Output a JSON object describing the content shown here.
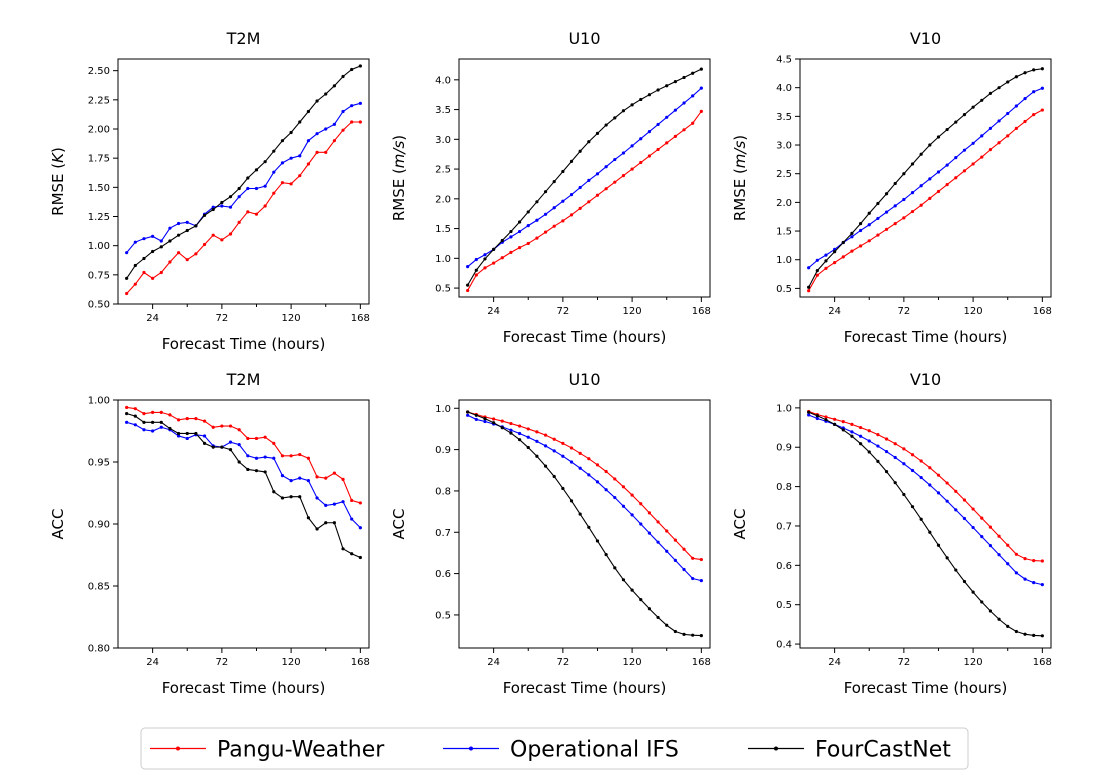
{
  "xlabel": "Forecast Time (hours)",
  "series_styles": {
    "Pangu-Weather": "#ff0000",
    "Operational IFS": "#0000ff",
    "FourCastNet": "#000000"
  },
  "legend": {
    "position": "bottom-center",
    "entries": [
      "Pangu-Weather",
      "Operational IFS",
      "FourCastNet"
    ]
  },
  "chart_data": [
    {
      "type": "line",
      "title": "T2M",
      "ylabel": "RMSE ",
      "ylabel_unit": "K",
      "xlim": [
        0,
        174
      ],
      "ylim": [
        0.5,
        2.6
      ],
      "xticks": [
        24,
        72,
        120,
        168
      ],
      "xminor": [
        48,
        96,
        144
      ],
      "yticks": [
        0.5,
        0.75,
        1.0,
        1.25,
        1.5,
        1.75,
        2.0,
        2.25,
        2.5
      ],
      "ytick_labels": [
        "0.50",
        "0.75",
        "1.00",
        "1.25",
        "1.50",
        "1.75",
        "2.00",
        "2.25",
        "2.50"
      ],
      "x": [
        6,
        12,
        18,
        24,
        30,
        36,
        42,
        48,
        54,
        60,
        66,
        72,
        78,
        84,
        90,
        96,
        102,
        108,
        114,
        120,
        126,
        132,
        138,
        144,
        150,
        156,
        162,
        168
      ],
      "series": [
        {
          "name": "Pangu-Weather",
          "values": [
            0.59,
            0.67,
            0.77,
            0.72,
            0.77,
            0.86,
            0.94,
            0.88,
            0.93,
            1.01,
            1.09,
            1.05,
            1.1,
            1.2,
            1.29,
            1.27,
            1.34,
            1.45,
            1.54,
            1.53,
            1.6,
            1.7,
            1.8,
            1.8,
            1.9,
            1.99,
            2.06,
            2.06
          ]
        },
        {
          "name": "Operational IFS",
          "values": [
            0.94,
            1.03,
            1.06,
            1.08,
            1.04,
            1.15,
            1.19,
            1.2,
            1.17,
            1.27,
            1.33,
            1.34,
            1.33,
            1.42,
            1.49,
            1.49,
            1.51,
            1.63,
            1.71,
            1.75,
            1.77,
            1.9,
            1.96,
            2.0,
            2.04,
            2.15,
            2.2,
            2.22
          ]
        },
        {
          "name": "FourCastNet",
          "values": [
            0.72,
            0.83,
            0.89,
            0.95,
            0.99,
            1.04,
            1.09,
            1.13,
            1.17,
            1.26,
            1.31,
            1.37,
            1.42,
            1.49,
            1.58,
            1.65,
            1.72,
            1.81,
            1.9,
            1.97,
            2.06,
            2.15,
            2.24,
            2.3,
            2.37,
            2.45,
            2.51,
            2.54
          ]
        }
      ]
    },
    {
      "type": "line",
      "title": "U10",
      "ylabel": "RMSE ",
      "ylabel_unit": "m/s",
      "xlim": [
        0,
        174
      ],
      "ylim": [
        0.35,
        4.35
      ],
      "xticks": [
        24,
        72,
        120,
        168
      ],
      "xminor": [
        48,
        96,
        144
      ],
      "yticks": [
        0.5,
        1.0,
        1.5,
        2.0,
        2.5,
        3.0,
        3.5,
        4.0
      ],
      "ytick_labels": [
        "0.5",
        "1.0",
        "1.5",
        "2.0",
        "2.5",
        "3.0",
        "3.5",
        "4.0"
      ],
      "x": [
        6,
        12,
        18,
        24,
        30,
        36,
        42,
        48,
        54,
        60,
        66,
        72,
        78,
        84,
        90,
        96,
        102,
        108,
        114,
        120,
        126,
        132,
        138,
        144,
        150,
        156,
        162,
        168
      ],
      "series": [
        {
          "name": "Pangu-Weather",
          "values": [
            0.46,
            0.72,
            0.84,
            0.92,
            1.01,
            1.1,
            1.18,
            1.25,
            1.34,
            1.44,
            1.54,
            1.63,
            1.73,
            1.84,
            1.95,
            2.06,
            2.17,
            2.28,
            2.39,
            2.5,
            2.61,
            2.72,
            2.83,
            2.94,
            3.05,
            3.16,
            3.27,
            3.47
          ]
        },
        {
          "name": "Operational IFS",
          "values": [
            0.86,
            0.98,
            1.06,
            1.15,
            1.27,
            1.36,
            1.45,
            1.55,
            1.64,
            1.74,
            1.85,
            1.96,
            2.07,
            2.19,
            2.31,
            2.42,
            2.54,
            2.66,
            2.77,
            2.89,
            3.01,
            3.13,
            3.25,
            3.37,
            3.49,
            3.61,
            3.73,
            3.86
          ]
        },
        {
          "name": "FourCastNet",
          "values": [
            0.55,
            0.8,
            0.99,
            1.15,
            1.3,
            1.45,
            1.61,
            1.78,
            1.95,
            2.12,
            2.29,
            2.46,
            2.63,
            2.8,
            2.96,
            3.1,
            3.24,
            3.36,
            3.48,
            3.58,
            3.67,
            3.75,
            3.83,
            3.9,
            3.97,
            4.04,
            4.11,
            4.18
          ]
        }
      ]
    },
    {
      "type": "line",
      "title": "V10",
      "ylabel": "RMSE ",
      "ylabel_unit": "m/s",
      "xlim": [
        0,
        174
      ],
      "ylim": [
        0.35,
        4.5
      ],
      "xticks": [
        24,
        72,
        120,
        168
      ],
      "xminor": [
        48,
        96,
        144
      ],
      "yticks": [
        0.5,
        1.0,
        1.5,
        2.0,
        2.5,
        3.0,
        3.5,
        4.0,
        4.5
      ],
      "ytick_labels": [
        "0.5",
        "1.0",
        "1.5",
        "2.0",
        "2.5",
        "3.0",
        "3.5",
        "4.0",
        "4.5"
      ],
      "x": [
        6,
        12,
        18,
        24,
        30,
        36,
        42,
        48,
        54,
        60,
        66,
        72,
        78,
        84,
        90,
        96,
        102,
        108,
        114,
        120,
        126,
        132,
        138,
        144,
        150,
        156,
        162,
        168
      ],
      "series": [
        {
          "name": "Pangu-Weather",
          "values": [
            0.46,
            0.73,
            0.85,
            0.95,
            1.05,
            1.15,
            1.24,
            1.33,
            1.43,
            1.53,
            1.63,
            1.73,
            1.84,
            1.95,
            2.07,
            2.19,
            2.31,
            2.43,
            2.55,
            2.67,
            2.79,
            2.92,
            3.04,
            3.16,
            3.29,
            3.41,
            3.53,
            3.61
          ]
        },
        {
          "name": "Operational IFS",
          "values": [
            0.86,
            0.99,
            1.08,
            1.18,
            1.3,
            1.4,
            1.51,
            1.61,
            1.72,
            1.83,
            1.94,
            2.05,
            2.17,
            2.29,
            2.41,
            2.53,
            2.65,
            2.78,
            2.91,
            3.03,
            3.16,
            3.29,
            3.42,
            3.55,
            3.68,
            3.81,
            3.93,
            3.99
          ]
        },
        {
          "name": "FourCastNet",
          "values": [
            0.52,
            0.81,
            0.98,
            1.14,
            1.3,
            1.46,
            1.63,
            1.81,
            1.98,
            2.15,
            2.33,
            2.5,
            2.67,
            2.84,
            3.0,
            3.14,
            3.27,
            3.4,
            3.53,
            3.66,
            3.78,
            3.9,
            4.0,
            4.1,
            4.19,
            4.26,
            4.31,
            4.33
          ]
        }
      ]
    },
    {
      "type": "line",
      "title": "T2M",
      "ylabel": "ACC",
      "ylabel_unit": "",
      "xlim": [
        0,
        174
      ],
      "ylim": [
        0.8,
        1.0
      ],
      "xticks": [
        24,
        72,
        120,
        168
      ],
      "xminor": [
        48,
        96,
        144
      ],
      "yticks": [
        0.8,
        0.85,
        0.9,
        0.95,
        1.0
      ],
      "ytick_labels": [
        "0.80",
        "0.85",
        "0.90",
        "0.95",
        "1.00"
      ],
      "x": [
        6,
        12,
        18,
        24,
        30,
        36,
        42,
        48,
        54,
        60,
        66,
        72,
        78,
        84,
        90,
        96,
        102,
        108,
        114,
        120,
        126,
        132,
        138,
        144,
        150,
        156,
        162,
        168
      ],
      "series": [
        {
          "name": "Pangu-Weather",
          "values": [
            0.994,
            0.993,
            0.989,
            0.99,
            0.99,
            0.988,
            0.984,
            0.985,
            0.985,
            0.983,
            0.978,
            0.979,
            0.979,
            0.976,
            0.969,
            0.969,
            0.97,
            0.965,
            0.955,
            0.955,
            0.956,
            0.953,
            0.938,
            0.937,
            0.941,
            0.936,
            0.919,
            0.917
          ]
        },
        {
          "name": "Operational IFS",
          "values": [
            0.982,
            0.98,
            0.976,
            0.975,
            0.978,
            0.976,
            0.971,
            0.969,
            0.972,
            0.971,
            0.963,
            0.962,
            0.966,
            0.964,
            0.955,
            0.953,
            0.954,
            0.953,
            0.939,
            0.935,
            0.937,
            0.935,
            0.921,
            0.915,
            0.916,
            0.918,
            0.904,
            0.897
          ]
        },
        {
          "name": "FourCastNet",
          "values": [
            0.989,
            0.987,
            0.982,
            0.982,
            0.982,
            0.977,
            0.973,
            0.973,
            0.973,
            0.965,
            0.962,
            0.962,
            0.96,
            0.95,
            0.944,
            0.943,
            0.942,
            0.926,
            0.921,
            0.922,
            0.922,
            0.905,
            0.896,
            0.901,
            0.901,
            0.88,
            0.876,
            0.873
          ]
        }
      ]
    },
    {
      "type": "line",
      "title": "U10",
      "ylabel": "ACC",
      "ylabel_unit": "",
      "xlim": [
        0,
        174
      ],
      "ylim": [
        0.42,
        1.02
      ],
      "xticks": [
        24,
        72,
        120,
        168
      ],
      "xminor": [
        48,
        96,
        144
      ],
      "yticks": [
        0.5,
        0.6,
        0.7,
        0.8,
        0.9,
        1.0
      ],
      "ytick_labels": [
        "0.5",
        "0.6",
        "0.7",
        "0.8",
        "0.9",
        "1.0"
      ],
      "x": [
        6,
        12,
        18,
        24,
        30,
        36,
        42,
        48,
        54,
        60,
        66,
        72,
        78,
        84,
        90,
        96,
        102,
        108,
        114,
        120,
        126,
        132,
        138,
        144,
        150,
        156,
        162,
        168
      ],
      "series": [
        {
          "name": "Pangu-Weather",
          "values": [
            0.991,
            0.985,
            0.979,
            0.974,
            0.969,
            0.963,
            0.957,
            0.95,
            0.943,
            0.935,
            0.925,
            0.915,
            0.904,
            0.891,
            0.878,
            0.863,
            0.847,
            0.829,
            0.81,
            0.79,
            0.769,
            0.747,
            0.725,
            0.703,
            0.681,
            0.659,
            0.637,
            0.634
          ]
        },
        {
          "name": "Operational IFS",
          "values": [
            0.983,
            0.973,
            0.968,
            0.962,
            0.955,
            0.947,
            0.939,
            0.93,
            0.92,
            0.909,
            0.897,
            0.884,
            0.87,
            0.855,
            0.839,
            0.822,
            0.803,
            0.784,
            0.763,
            0.742,
            0.72,
            0.698,
            0.676,
            0.654,
            0.632,
            0.61,
            0.588,
            0.583
          ]
        },
        {
          "name": "FourCastNet",
          "values": [
            0.991,
            0.983,
            0.975,
            0.965,
            0.953,
            0.94,
            0.924,
            0.905,
            0.884,
            0.86,
            0.835,
            0.806,
            0.776,
            0.744,
            0.712,
            0.679,
            0.646,
            0.614,
            0.585,
            0.56,
            0.537,
            0.515,
            0.494,
            0.475,
            0.46,
            0.453,
            0.451,
            0.45
          ]
        }
      ]
    },
    {
      "type": "line",
      "title": "V10",
      "ylabel": "ACC",
      "ylabel_unit": "",
      "xlim": [
        0,
        174
      ],
      "ylim": [
        0.39,
        1.02
      ],
      "xticks": [
        24,
        72,
        120,
        168
      ],
      "xminor": [
        48,
        96,
        144
      ],
      "yticks": [
        0.4,
        0.5,
        0.6,
        0.7,
        0.8,
        0.9,
        1.0
      ],
      "ytick_labels": [
        "0.4",
        "0.5",
        "0.6",
        "0.7",
        "0.8",
        "0.9",
        "1.0"
      ],
      "x": [
        6,
        12,
        18,
        24,
        30,
        36,
        42,
        48,
        54,
        60,
        66,
        72,
        78,
        84,
        90,
        96,
        102,
        108,
        114,
        120,
        126,
        132,
        138,
        144,
        150,
        156,
        162,
        168
      ],
      "series": [
        {
          "name": "Pangu-Weather",
          "values": [
            0.991,
            0.983,
            0.977,
            0.971,
            0.965,
            0.958,
            0.95,
            0.942,
            0.932,
            0.921,
            0.909,
            0.896,
            0.881,
            0.865,
            0.848,
            0.829,
            0.809,
            0.788,
            0.766,
            0.743,
            0.72,
            0.697,
            0.674,
            0.651,
            0.628,
            0.617,
            0.612,
            0.611
          ]
        },
        {
          "name": "Operational IFS",
          "values": [
            0.982,
            0.973,
            0.966,
            0.958,
            0.949,
            0.939,
            0.928,
            0.916,
            0.903,
            0.889,
            0.874,
            0.858,
            0.841,
            0.823,
            0.804,
            0.784,
            0.763,
            0.741,
            0.719,
            0.696,
            0.673,
            0.65,
            0.627,
            0.604,
            0.581,
            0.565,
            0.556,
            0.551
          ]
        },
        {
          "name": "FourCastNet",
          "values": [
            0.989,
            0.98,
            0.97,
            0.958,
            0.944,
            0.928,
            0.909,
            0.888,
            0.864,
            0.838,
            0.81,
            0.78,
            0.749,
            0.717,
            0.684,
            0.651,
            0.619,
            0.588,
            0.559,
            0.532,
            0.507,
            0.484,
            0.463,
            0.445,
            0.432,
            0.425,
            0.422,
            0.421
          ]
        }
      ]
    }
  ]
}
